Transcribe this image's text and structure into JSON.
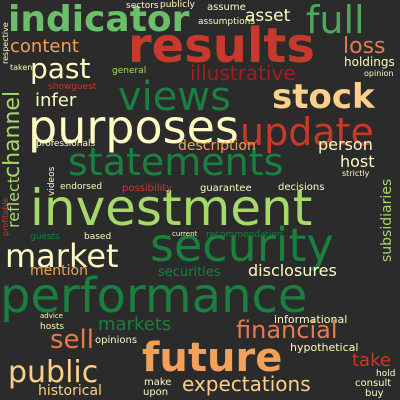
{
  "background": "#2b2b2b",
  "palette": {
    "dark_green": "#1a7f3f",
    "mid_green": "#4ea85c",
    "light_green": "#a7d96a",
    "pale_yellow": "#fdfbc2",
    "orange": "#f3a05a",
    "salmon": "#e87a50",
    "red": "#c73a2b",
    "deep_red": "#a51c24"
  },
  "words": [
    {
      "text": "indicator",
      "color": "#6cbf6a"
    },
    {
      "text": "full",
      "color": "#4ea85c"
    },
    {
      "text": "results",
      "color": "#c73a2b"
    },
    {
      "text": "asset",
      "color": "#fdfbc2"
    },
    {
      "text": "loss",
      "color": "#e87a50"
    },
    {
      "text": "content",
      "color": "#f3a05a"
    },
    {
      "text": "past",
      "color": "#fdfbc2"
    },
    {
      "text": "illustrative",
      "color": "#a51c24"
    },
    {
      "text": "holdings",
      "color": "#fdfbc2"
    },
    {
      "text": "views",
      "color": "#1a7f3f"
    },
    {
      "text": "stock",
      "color": "#fdd08a"
    },
    {
      "text": "infer",
      "color": "#fdfbc2"
    },
    {
      "text": "purposes",
      "color": "#fdfbc2"
    },
    {
      "text": "update",
      "color": "#c73a2b"
    },
    {
      "text": "channel",
      "color": "#a7d96a"
    },
    {
      "text": "statements",
      "color": "#1a7f3f"
    },
    {
      "text": "person",
      "color": "#fdfbc2"
    },
    {
      "text": "description",
      "color": "#f3a05a"
    },
    {
      "text": "host",
      "color": "#fdfbc2"
    },
    {
      "text": "investment",
      "color": "#a7d96a"
    },
    {
      "text": "reflect",
      "color": "#a7d96a"
    },
    {
      "text": "subsidiaries",
      "color": "#a7d96a"
    },
    {
      "text": "market",
      "color": "#fdfbc2"
    },
    {
      "text": "security",
      "color": "#1a7f3f"
    },
    {
      "text": "mention",
      "color": "#f3a05a"
    },
    {
      "text": "disclosures",
      "color": "#fdfbc2"
    },
    {
      "text": "securities",
      "color": "#1a7f3f"
    },
    {
      "text": "performance",
      "color": "#1a7f3f"
    },
    {
      "text": "markets",
      "color": "#1a7f3f"
    },
    {
      "text": "financial",
      "color": "#e87a50"
    },
    {
      "text": "sell",
      "color": "#e87a50"
    },
    {
      "text": "future",
      "color": "#f3a05a"
    },
    {
      "text": "take",
      "color": "#c73a2b"
    },
    {
      "text": "public",
      "color": "#fdd08a"
    },
    {
      "text": "expectations",
      "color": "#fdd08a"
    },
    {
      "text": "historical",
      "color": "#fdd08a"
    },
    {
      "text": "opinions",
      "color": "#fdfbc2"
    },
    {
      "text": "informational",
      "color": "#fdfbc2"
    },
    {
      "text": "hypothetical",
      "color": "#fdfbc2"
    },
    {
      "text": "sectors",
      "color": "#fdfbc2"
    },
    {
      "text": "publicly",
      "color": "#fdfbc2"
    },
    {
      "text": "assume",
      "color": "#fdfbc2"
    },
    {
      "text": "assumptions",
      "color": "#fdfbc2"
    },
    {
      "text": "general",
      "color": "#a7d96a"
    },
    {
      "text": "showguest",
      "color": "#c73a2b"
    },
    {
      "text": "respective",
      "color": "#fdfbc2"
    },
    {
      "text": "taken",
      "color": "#fdfbc2"
    },
    {
      "text": "opinion",
      "color": "#fdfbc2"
    },
    {
      "text": "professionals",
      "color": "#fdfbc2"
    },
    {
      "text": "videos",
      "color": "#fdfbc2"
    },
    {
      "text": "endorsed",
      "color": "#fdfbc2"
    },
    {
      "text": "possibility",
      "color": "#c73a2b"
    },
    {
      "text": "guarantee",
      "color": "#fdfbc2"
    },
    {
      "text": "decisions",
      "color": "#fdfbc2"
    },
    {
      "text": "strictly",
      "color": "#fdfbc2"
    },
    {
      "text": "profitable",
      "color": "#c73a2b"
    },
    {
      "text": "guests",
      "color": "#1a7f3f"
    },
    {
      "text": "based",
      "color": "#fdfbc2"
    },
    {
      "text": "current",
      "color": "#fdfbc2"
    },
    {
      "text": "recommendation",
      "color": "#1a7f3f"
    },
    {
      "text": "advice",
      "color": "#fdfbc2"
    },
    {
      "text": "hosts",
      "color": "#fdfbc2"
    },
    {
      "text": "make",
      "color": "#fdfbc2"
    },
    {
      "text": "upon",
      "color": "#fdfbc2"
    },
    {
      "text": "hold",
      "color": "#fdfbc2"
    },
    {
      "text": "consult",
      "color": "#fdfbc2"
    },
    {
      "text": "buy",
      "color": "#fdfbc2"
    }
  ]
}
